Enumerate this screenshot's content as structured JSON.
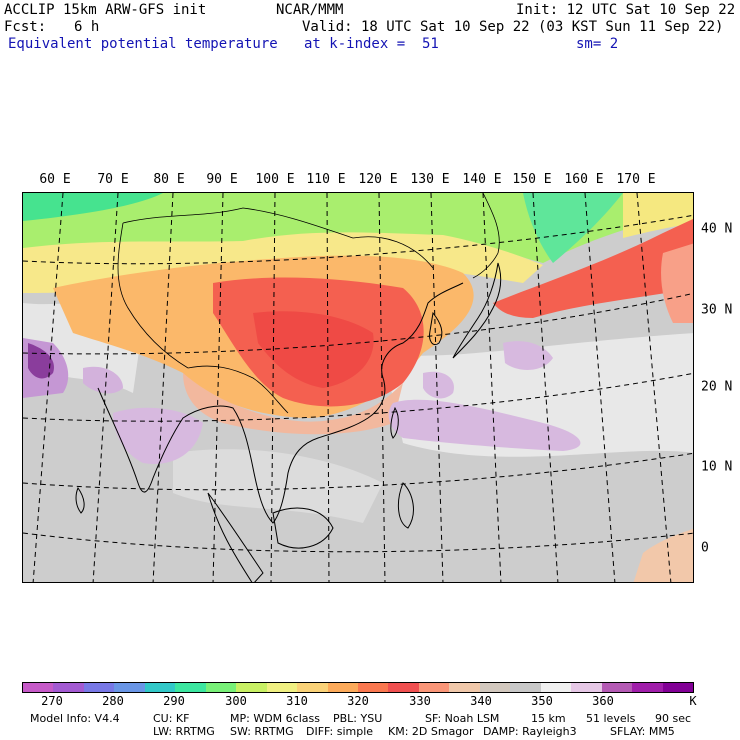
{
  "header": {
    "model_name": "ACCLIP 15km ARW-GFS init",
    "org": "NCAR/MMM",
    "init": "Init: 12 UTC Sat 10 Sep 22",
    "fcst_label": "Fcst:",
    "fcst_value": "6 h",
    "valid": "Valid: 18 UTC Sat 10 Sep 22 (03 KST Sun 11 Sep 22)",
    "field_name": "Equivalent potential temperature",
    "level": "at k-index =  51",
    "smoothing": "sm= 2"
  },
  "map": {
    "lon_labels": [
      "60 E",
      "70 E",
      "80 E",
      "90 E",
      "100 E",
      "110 E",
      "120 E",
      "130 E",
      "140 E",
      "150 E",
      "160 E",
      "170 E"
    ],
    "lat_labels": [
      "40 N",
      "30 N",
      "20 N",
      "10 N",
      "0"
    ],
    "region_summary": "Asia–West Pacific"
  },
  "colorbar": {
    "unit": "K",
    "tick_labels": [
      "270",
      "280",
      "290",
      "300",
      "310",
      "320",
      "330",
      "340",
      "350",
      "360"
    ],
    "colors": [
      "#c65ac8",
      "#a35ad2",
      "#7878e6",
      "#6a96e6",
      "#32c8c8",
      "#3ce6a0",
      "#78f078",
      "#c8f064",
      "#f0f082",
      "#fad278",
      "#fcaa5a",
      "#fa7850",
      "#f05050",
      "#fa9678",
      "#f0c8aa",
      "#d2c8be",
      "#c8c8c8",
      "#f0f0f0",
      "#e6c8e6",
      "#b45ab4",
      "#a01eaa",
      "#820096"
    ]
  },
  "footer": {
    "line1": [
      "Model Info: V4.4",
      "CU: KF",
      "MP: WDM 6class",
      "PBL: YSU",
      "SF: Noah LSM",
      "15 km",
      "51 levels",
      "90 sec"
    ],
    "line2": [
      "LW: RRTMG",
      "SW: RRTMG",
      "DIFF: simple",
      "KM: 2D Smagor",
      "DAMP: Rayleigh3",
      "SFLAY: MM5"
    ]
  }
}
